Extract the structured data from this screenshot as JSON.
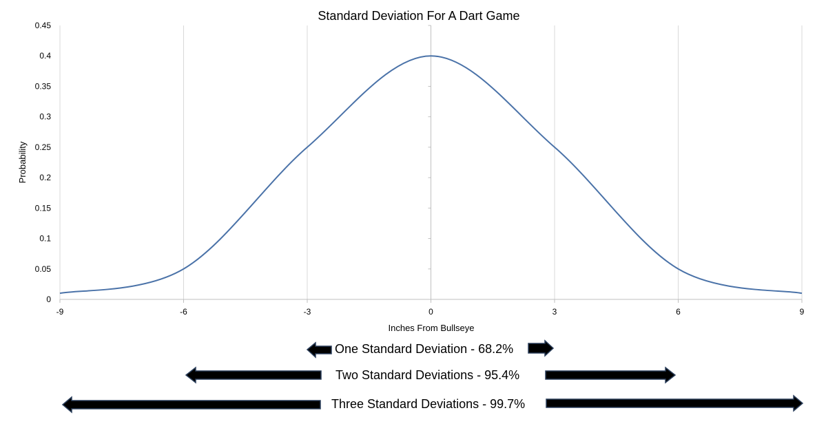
{
  "chart_data": {
    "type": "line",
    "title": "Standard Deviation For A Dart Game",
    "xlabel": "Inches From Bullseye",
    "ylabel": "Probability",
    "xlim": [
      -9,
      9
    ],
    "ylim": [
      0,
      0.45
    ],
    "x_ticks": [
      "-9",
      "-6",
      "-3",
      "0",
      "3",
      "6",
      "9"
    ],
    "y_ticks": [
      "0",
      "0.05",
      "0.1",
      "0.15",
      "0.2",
      "0.25",
      "0.3",
      "0.35",
      "0.4",
      "0.45"
    ],
    "grid": "vertical",
    "series": [
      {
        "color": "#4a72a8",
        "x": [
          -9,
          -6,
          -3,
          0,
          3,
          6,
          9
        ],
        "y": [
          0.01,
          0.05,
          0.25,
          0.4,
          0.25,
          0.05,
          0.01
        ]
      }
    ]
  },
  "annotations": {
    "one_sd": "One Standard Deviation - 68.2%",
    "two_sd": "Two Standard Deviations - 95.4%",
    "three_sd": "Three Standard Deviations - 99.7%"
  }
}
